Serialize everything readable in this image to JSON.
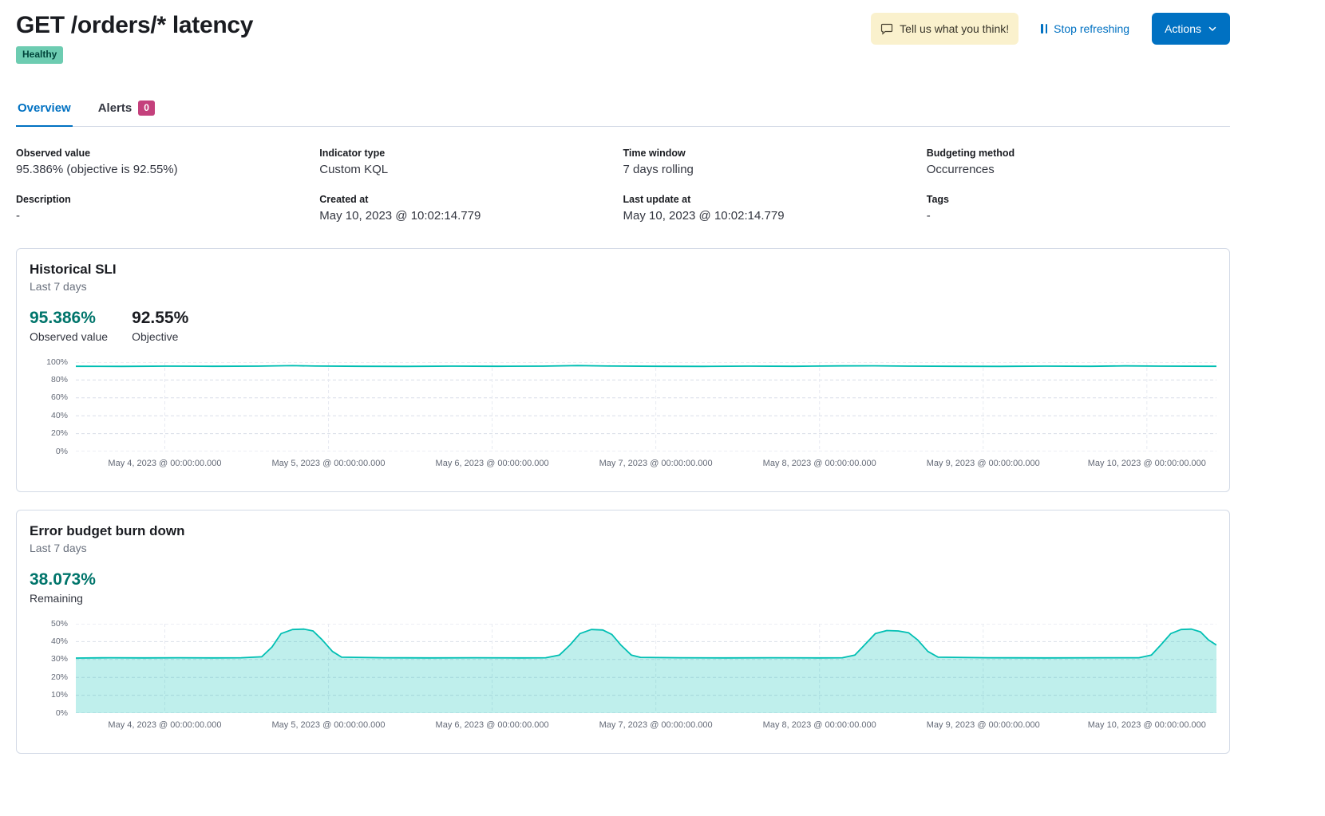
{
  "header": {
    "title": "GET /orders/* latency",
    "status_badge": "Healthy",
    "feedback_button": "Tell us what you think!",
    "stop_refreshing": "Stop refreshing",
    "actions_button": "Actions"
  },
  "tabs": [
    {
      "label": "Overview",
      "active": true
    },
    {
      "label": "Alerts",
      "badge": "0"
    }
  ],
  "definition": [
    {
      "label": "Observed value",
      "value": "95.386% (objective is 92.55%)"
    },
    {
      "label": "Indicator type",
      "value": "Custom KQL"
    },
    {
      "label": "Time window",
      "value": "7 days rolling"
    },
    {
      "label": "Budgeting method",
      "value": "Occurrences"
    },
    {
      "label": "Description",
      "value": "-"
    },
    {
      "label": "Created at",
      "value": "May 10, 2023 @ 10:02:14.779"
    },
    {
      "label": "Last update at",
      "value": "May 10, 2023 @ 10:02:14.779"
    },
    {
      "label": "Tags",
      "value": "-"
    }
  ],
  "panels": {
    "historical_sli": {
      "title": "Historical SLI",
      "subtitle": "Last 7 days",
      "stats": [
        {
          "value": "95.386%",
          "label": "Observed value"
        },
        {
          "value": "92.55%",
          "label": "Objective"
        }
      ]
    },
    "error_budget": {
      "title": "Error budget burn down",
      "subtitle": "Last 7 days",
      "stats": [
        {
          "value": "38.073%",
          "label": "Remaining"
        }
      ]
    }
  },
  "colors": {
    "primary": "#0071c2",
    "healthy_badge_bg": "#6dccb1",
    "alerts_badge_bg": "#c4407c",
    "teal_value_text": "#00756b",
    "chart_line": "#00bfb3",
    "feedback_button_bg": "#faf1cd"
  },
  "chart_data": [
    {
      "type": "line",
      "title": "Historical SLI",
      "subtitle": "Last 7 days",
      "xlabel": "",
      "ylabel": "",
      "ylim": [
        0,
        100
      ],
      "yticks": [
        0,
        20,
        40,
        60,
        80,
        100
      ],
      "unit": "%",
      "grid": true,
      "legend": "none",
      "line_color": "#00bfb3",
      "fill_color": "none",
      "fill_opacity": 0,
      "xticks": [
        {
          "pos": 0.078,
          "label": "May 4, 2023 @ 00:00:00.000"
        },
        {
          "pos": 0.2215,
          "label": "May 5, 2023 @ 00:00:00.000"
        },
        {
          "pos": 0.365,
          "label": "May 6, 2023 @ 00:00:00.000"
        },
        {
          "pos": 0.5085,
          "label": "May 7, 2023 @ 00:00:00.000"
        },
        {
          "pos": 0.652,
          "label": "May 8, 2023 @ 00:00:00.000"
        },
        {
          "pos": 0.7955,
          "label": "May 9, 2023 @ 00:00:00.000"
        },
        {
          "pos": 0.939,
          "label": "May 10, 2023 @ 00:00:00.000"
        }
      ],
      "points": [
        [
          0,
          95.4
        ],
        [
          0.04,
          95.3
        ],
        [
          0.08,
          95.5
        ],
        [
          0.12,
          95.4
        ],
        [
          0.16,
          95.5
        ],
        [
          0.19,
          96.1
        ],
        [
          0.21,
          95.6
        ],
        [
          0.25,
          95.4
        ],
        [
          0.29,
          95.3
        ],
        [
          0.33,
          95.5
        ],
        [
          0.37,
          95.4
        ],
        [
          0.41,
          95.5
        ],
        [
          0.44,
          96.2
        ],
        [
          0.47,
          95.6
        ],
        [
          0.51,
          95.4
        ],
        [
          0.55,
          95.3
        ],
        [
          0.59,
          95.5
        ],
        [
          0.63,
          95.4
        ],
        [
          0.67,
          95.8
        ],
        [
          0.7,
          95.9
        ],
        [
          0.73,
          95.5
        ],
        [
          0.77,
          95.4
        ],
        [
          0.81,
          95.3
        ],
        [
          0.85,
          95.5
        ],
        [
          0.89,
          95.4
        ],
        [
          0.92,
          95.8
        ],
        [
          0.95,
          95.5
        ],
        [
          1,
          95.4
        ]
      ]
    },
    {
      "type": "area",
      "title": "Error budget burn down",
      "subtitle": "Last 7 days",
      "xlabel": "",
      "ylabel": "",
      "ylim": [
        0,
        50
      ],
      "yticks": [
        0,
        10,
        20,
        30,
        40,
        50
      ],
      "unit": "%",
      "grid": true,
      "legend": "none",
      "line_color": "#00bfb3",
      "fill_color": "#00bfb3",
      "fill_opacity": 0.25,
      "xticks": [
        {
          "pos": 0.078,
          "label": "May 4, 2023 @ 00:00:00.000"
        },
        {
          "pos": 0.2215,
          "label": "May 5, 2023 @ 00:00:00.000"
        },
        {
          "pos": 0.365,
          "label": "May 6, 2023 @ 00:00:00.000"
        },
        {
          "pos": 0.5085,
          "label": "May 7, 2023 @ 00:00:00.000"
        },
        {
          "pos": 0.652,
          "label": "May 8, 2023 @ 00:00:00.000"
        },
        {
          "pos": 0.7955,
          "label": "May 9, 2023 @ 00:00:00.000"
        },
        {
          "pos": 0.939,
          "label": "May 10, 2023 @ 00:00:00.000"
        }
      ],
      "points": [
        [
          0,
          30.8
        ],
        [
          0.03,
          31
        ],
        [
          0.06,
          30.9
        ],
        [
          0.09,
          31
        ],
        [
          0.12,
          30.9
        ],
        [
          0.145,
          31
        ],
        [
          0.163,
          31.5
        ],
        [
          0.172,
          37
        ],
        [
          0.18,
          44.5
        ],
        [
          0.19,
          46.8
        ],
        [
          0.2,
          47
        ],
        [
          0.208,
          46
        ],
        [
          0.216,
          41
        ],
        [
          0.225,
          34.5
        ],
        [
          0.233,
          31.3
        ],
        [
          0.27,
          31
        ],
        [
          0.31,
          30.9
        ],
        [
          0.35,
          31
        ],
        [
          0.39,
          30.9
        ],
        [
          0.412,
          31
        ],
        [
          0.424,
          32.5
        ],
        [
          0.433,
          38
        ],
        [
          0.442,
          44.5
        ],
        [
          0.452,
          46.8
        ],
        [
          0.462,
          46.5
        ],
        [
          0.47,
          44
        ],
        [
          0.478,
          38
        ],
        [
          0.487,
          32.5
        ],
        [
          0.495,
          31.2
        ],
        [
          0.53,
          31
        ],
        [
          0.57,
          30.9
        ],
        [
          0.61,
          31
        ],
        [
          0.65,
          30.9
        ],
        [
          0.672,
          31
        ],
        [
          0.683,
          32.5
        ],
        [
          0.692,
          38.5
        ],
        [
          0.701,
          44.5
        ],
        [
          0.711,
          46.2
        ],
        [
          0.721,
          46
        ],
        [
          0.73,
          45
        ],
        [
          0.738,
          41
        ],
        [
          0.747,
          34.5
        ],
        [
          0.756,
          31.3
        ],
        [
          0.8,
          31
        ],
        [
          0.85,
          30.9
        ],
        [
          0.9,
          31
        ],
        [
          0.932,
          31
        ],
        [
          0.943,
          32.5
        ],
        [
          0.951,
          38
        ],
        [
          0.96,
          44.5
        ],
        [
          0.969,
          46.8
        ],
        [
          0.978,
          47
        ],
        [
          0.986,
          45.5
        ],
        [
          0.993,
          41
        ],
        [
          1,
          38.1
        ]
      ]
    }
  ]
}
